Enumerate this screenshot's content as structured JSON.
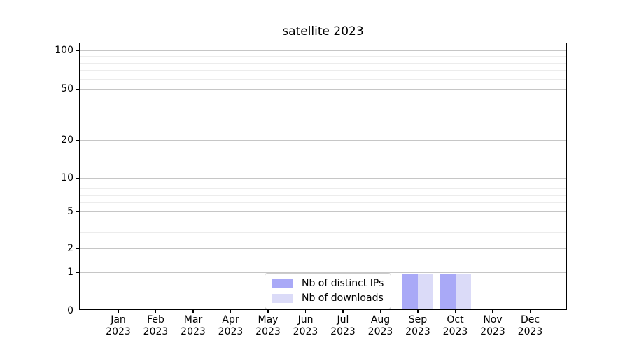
{
  "title": "satellite 2023",
  "legend": {
    "items": [
      {
        "label": "Nb of distinct IPs",
        "color": "#a9a9f7"
      },
      {
        "label": "Nb of downloads",
        "color": "#dbdbf8"
      }
    ]
  },
  "y_axis": {
    "scale": "symlog",
    "tick_labels": [
      "100",
      "50",
      "20",
      "10",
      "5",
      "2",
      "1",
      "0"
    ],
    "tick_values": [
      100,
      50,
      20,
      10,
      5,
      2,
      1,
      0
    ]
  },
  "x_axis": {
    "months": [
      {
        "month": "Jan",
        "year": "2023"
      },
      {
        "month": "Feb",
        "year": "2023"
      },
      {
        "month": "Mar",
        "year": "2023"
      },
      {
        "month": "Apr",
        "year": "2023"
      },
      {
        "month": "May",
        "year": "2023"
      },
      {
        "month": "Jun",
        "year": "2023"
      },
      {
        "month": "Jul",
        "year": "2023"
      },
      {
        "month": "Aug",
        "year": "2023"
      },
      {
        "month": "Sep",
        "year": "2023"
      },
      {
        "month": "Oct",
        "year": "2023"
      },
      {
        "month": "Nov",
        "year": "2023"
      },
      {
        "month": "Dec",
        "year": "2023"
      }
    ]
  },
  "chart_data": {
    "type": "bar",
    "title": "satellite 2023",
    "categories": [
      "Jan 2023",
      "Feb 2023",
      "Mar 2023",
      "Apr 2023",
      "May 2023",
      "Jun 2023",
      "Jul 2023",
      "Aug 2023",
      "Sep 2023",
      "Oct 2023",
      "Nov 2023",
      "Dec 2023"
    ],
    "series": [
      {
        "name": "Nb of distinct IPs",
        "color": "#a9a9f7",
        "values": [
          0,
          0,
          0,
          0,
          0,
          0,
          0,
          0,
          1,
          1,
          0,
          0
        ]
      },
      {
        "name": "Nb of downloads",
        "color": "#dbdbf8",
        "values": [
          0,
          0,
          0,
          0,
          0,
          0,
          0,
          0,
          1,
          1,
          0,
          0
        ]
      }
    ],
    "xlabel": "",
    "ylabel": "",
    "yscale": "symlog",
    "yticks": [
      0,
      1,
      2,
      5,
      10,
      20,
      50,
      100
    ],
    "grid": true,
    "legend_position": "lower center (inside axes)"
  },
  "colors": {
    "grid_major": "#c6c6c6",
    "grid_minor": "#ececec",
    "spine": "#000000",
    "background": "#ffffff"
  }
}
